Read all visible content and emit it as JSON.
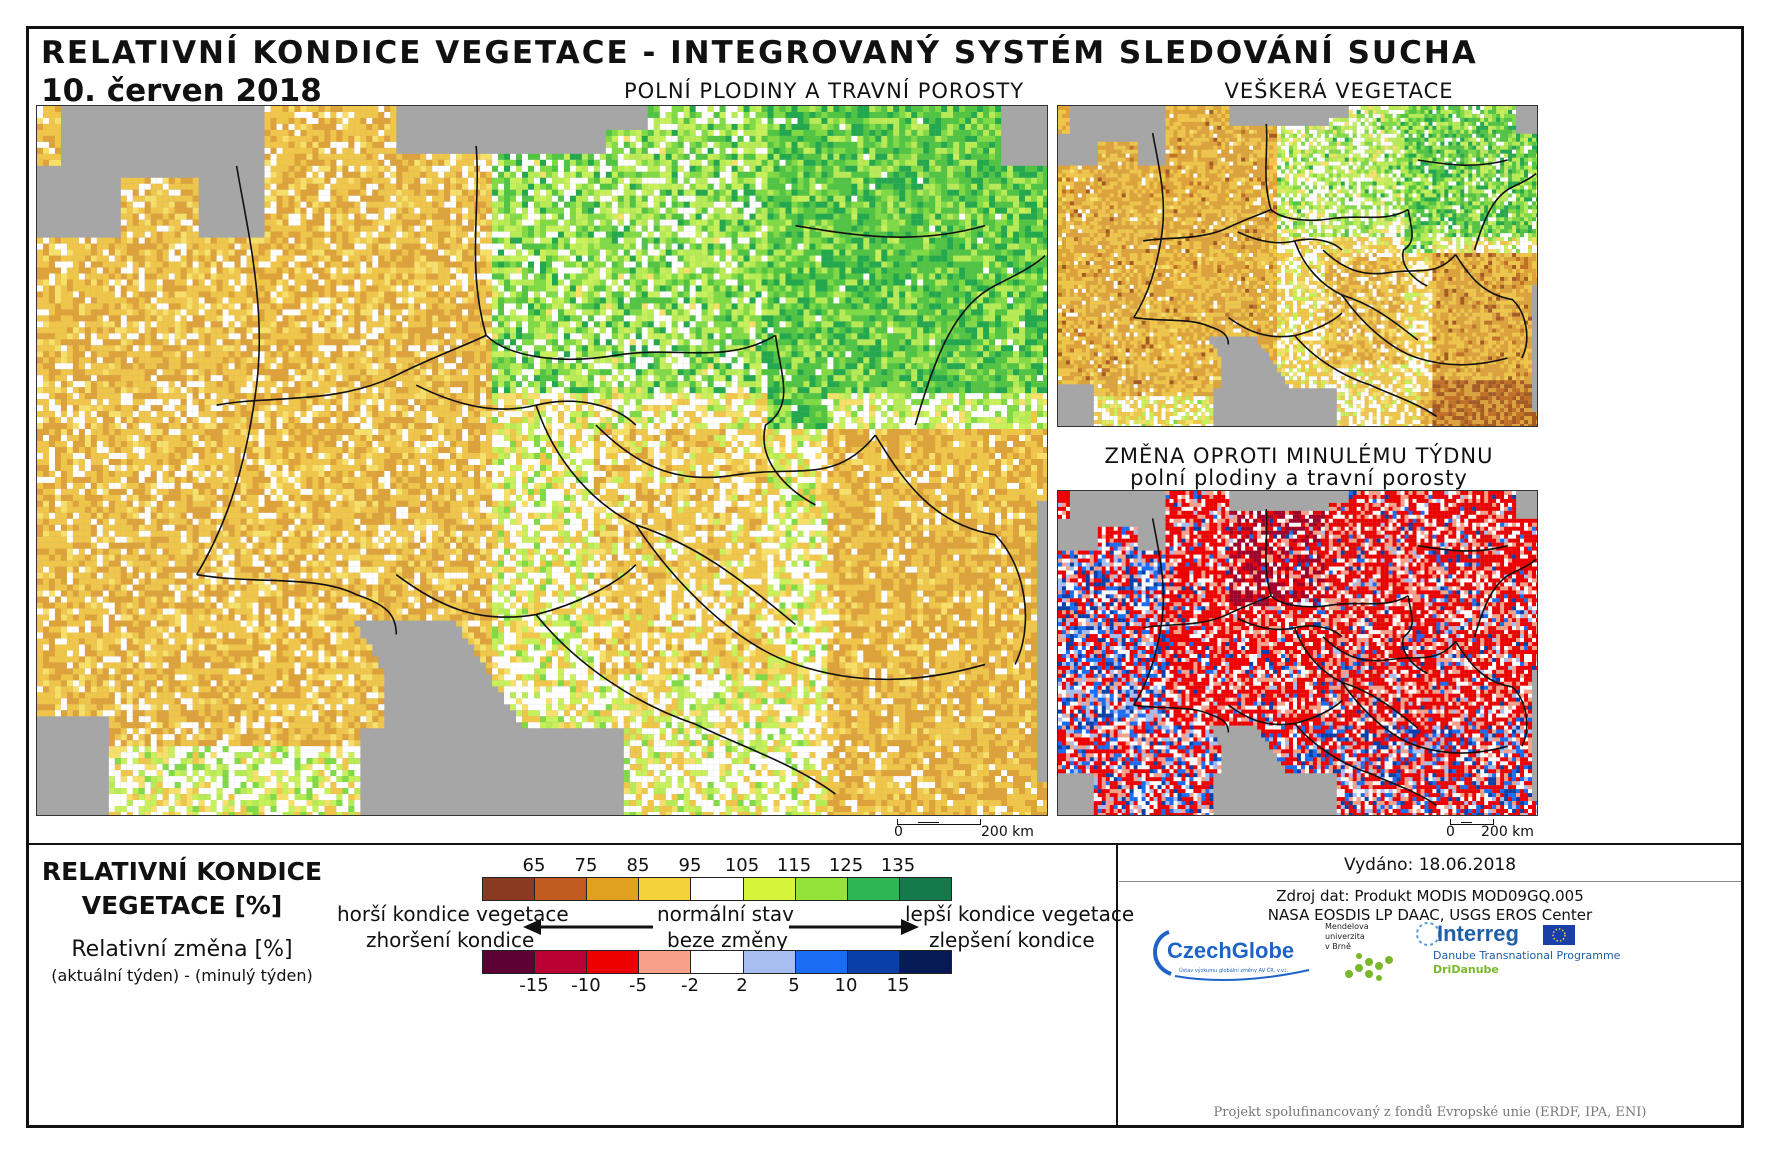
{
  "title": "RELATIVNÍ KONDICE VEGETACE - INTEGROVANÝ SYSTÉM SLEDOVÁNÍ SUCHA",
  "date": "10. červen 2018",
  "panels": {
    "main_title": "POLNÍ PLODINY A TRAVNÍ POROSTY",
    "all_veg_title": "VEŠKERÁ VEGETACE",
    "change_title_1": "ZMĚNA OPROTI MINULÉMU TÝDNU",
    "change_title_2": "polní plodiny a travní porosty"
  },
  "scalebar": {
    "main": {
      "left": "0",
      "right": "200 km"
    },
    "small": {
      "left": "0",
      "right": "200 km"
    }
  },
  "legend": {
    "title_1": "RELATIVNÍ KONDICE",
    "title_2": "VEGETACE [%]",
    "change_label": "Relativní změna [%]",
    "change_sub": "(aktuální týden) - (minulý týden)",
    "condition_ticks": [
      "65",
      "75",
      "85",
      "95",
      "105",
      "115",
      "125",
      "135"
    ],
    "condition_colors": [
      "#8b3a22",
      "#c15a1f",
      "#e1a020",
      "#f5d23a",
      "#ffffff",
      "#d6f53a",
      "#93e33a",
      "#2db653",
      "#147a4c"
    ],
    "change_ticks": [
      "-15",
      "-10",
      "-5",
      "-2",
      "2",
      "5",
      "10",
      "15"
    ],
    "change_colors": [
      "#5c0033",
      "#bb0033",
      "#ee0000",
      "#f7a08a",
      "#ffffff",
      "#a8bdf2",
      "#1a6cf5",
      "#0a3ea8",
      "#061a55"
    ],
    "worse_1": "horší kondice vegetace",
    "normal_1": "normální stav",
    "better_1": "lepší kondice vegetace",
    "worse_2": "zhoršení kondice",
    "normal_2": "beze změny",
    "better_2": "zlepšení kondice"
  },
  "info": {
    "issued": "Vydáno: 18.06.2018",
    "source_1": "Zdroj dat: Produkt MODIS MOD09GQ.005",
    "source_2": "NASA EOSDIS LP DAAC, USGS EROS Center",
    "footer": "Projekt spolufinancovaný z fondů Evropské unie (ERDF, IPA, ENI)",
    "logo_czechglobe": "CzechGlobe",
    "logo_czechglobe_sub": "Ústav výzkumu globální změny AV ČR, v.v.i.",
    "logo_mendel_1": "Mendelova",
    "logo_mendel_2": "univerzita",
    "logo_mendel_3": "v Brně",
    "logo_interreg": "Interreg",
    "logo_interreg_sub": "Danube Transnational Programme",
    "logo_dridanube": "DriDanube"
  },
  "colors": {
    "sea": "#a6a6a6",
    "border": "#111111"
  }
}
